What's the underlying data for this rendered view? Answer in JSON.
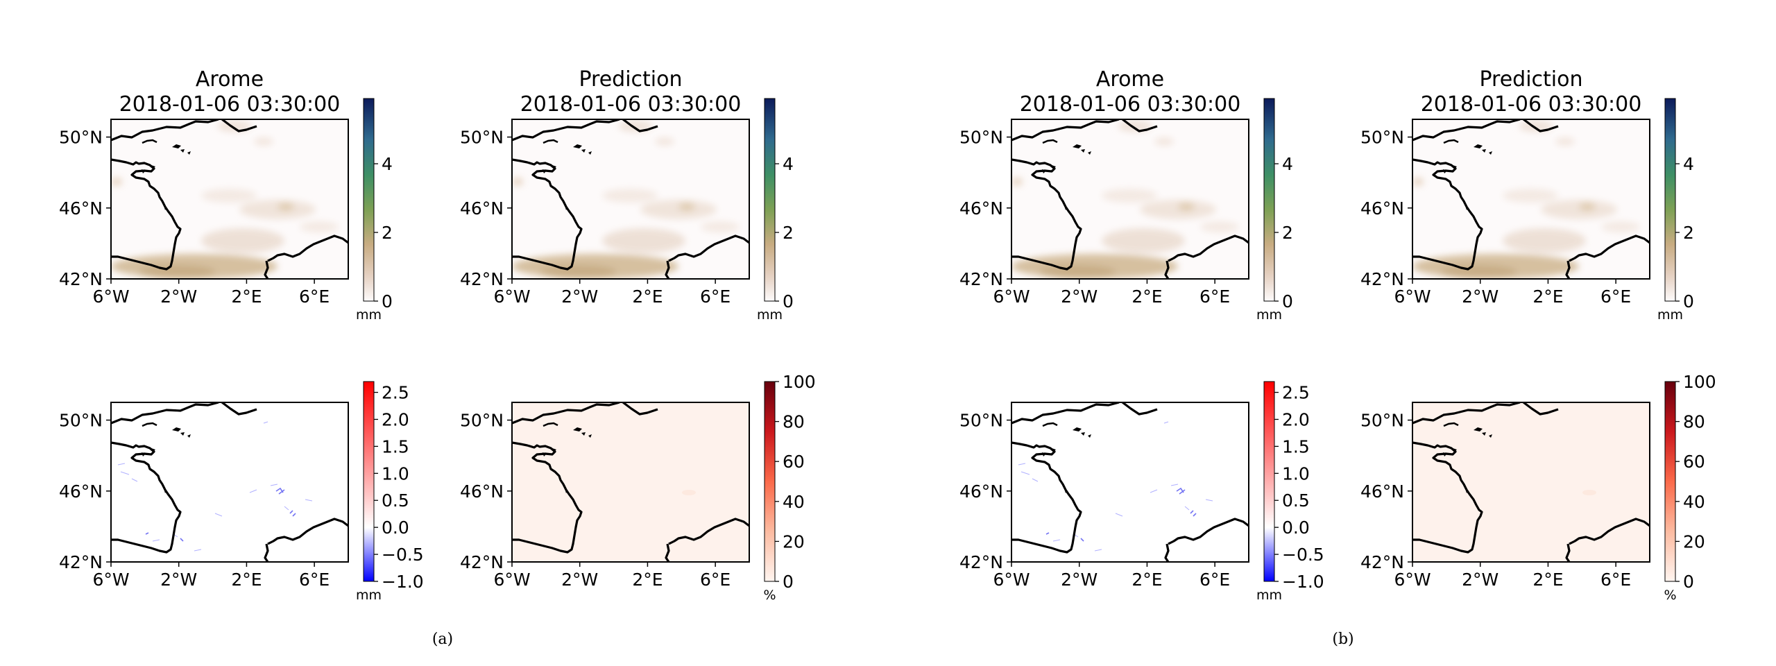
{
  "figure": {
    "sub_labels": [
      "(a)",
      "(b)"
    ]
  },
  "chart_data": [
    {
      "type": "heatmap",
      "panel": "a",
      "row": 1,
      "col": 1,
      "title": "Arome",
      "subtitle": "2018-01-06 03:30:00",
      "field": "precipitation",
      "xlim": [
        -6,
        8
      ],
      "ylim": [
        42,
        51
      ],
      "x_ticks": [
        "6°W",
        "2°W",
        "2°E",
        "6°E"
      ],
      "y_ticks": [
        "50°N",
        "46°N",
        "42°N"
      ],
      "colorbar": {
        "cmap": "gist_earth_r",
        "ticks": [
          "0",
          "2",
          "4"
        ],
        "range": [
          0,
          5.9
        ],
        "unit": "mm"
      }
    },
    {
      "type": "heatmap",
      "panel": "a",
      "row": 1,
      "col": 2,
      "title": "Prediction",
      "subtitle": "2018-01-06 03:30:00",
      "field": "precipitation",
      "xlim": [
        -6,
        8
      ],
      "ylim": [
        42,
        51
      ],
      "x_ticks": [
        "6°W",
        "2°W",
        "2°E",
        "6°E"
      ],
      "y_ticks": [
        "50°N",
        "46°N",
        "42°N"
      ],
      "colorbar": {
        "cmap": "gist_earth_r",
        "ticks": [
          "0",
          "2",
          "4"
        ],
        "range": [
          0,
          5.9
        ],
        "unit": "mm"
      }
    },
    {
      "type": "heatmap",
      "panel": "a",
      "row": 2,
      "col": 1,
      "title": "",
      "subtitle": "",
      "field": "difference",
      "xlim": [
        -6,
        8
      ],
      "ylim": [
        42,
        51
      ],
      "x_ticks": [
        "6°W",
        "2°W",
        "2°E",
        "6°E"
      ],
      "y_ticks": [
        "50°N",
        "46°N",
        "42°N"
      ],
      "colorbar": {
        "cmap": "bwr",
        "ticks": [
          "−1.0",
          "−0.5",
          "0.0",
          "0.5",
          "1.0",
          "1.5",
          "2.0",
          "2.5"
        ],
        "range": [
          -1.0,
          2.7
        ],
        "unit": "mm"
      }
    },
    {
      "type": "heatmap",
      "panel": "a",
      "row": 2,
      "col": 2,
      "title": "",
      "subtitle": "",
      "field": "probability",
      "xlim": [
        -6,
        8
      ],
      "ylim": [
        42,
        51
      ],
      "x_ticks": [
        "6°W",
        "2°W",
        "2°E",
        "6°E"
      ],
      "y_ticks": [
        "50°N",
        "46°N",
        "42°N"
      ],
      "colorbar": {
        "cmap": "Reds",
        "ticks": [
          "0",
          "20",
          "40",
          "60",
          "80",
          "100"
        ],
        "range": [
          0,
          100
        ],
        "unit": "%"
      }
    },
    {
      "type": "heatmap",
      "panel": "b",
      "row": 1,
      "col": 1,
      "title": "Arome",
      "subtitle": "2018-01-06 03:30:00",
      "field": "precipitation",
      "xlim": [
        -6,
        8
      ],
      "ylim": [
        42,
        51
      ],
      "x_ticks": [
        "6°W",
        "2°W",
        "2°E",
        "6°E"
      ],
      "y_ticks": [
        "50°N",
        "46°N",
        "42°N"
      ],
      "colorbar": {
        "cmap": "gist_earth_r",
        "ticks": [
          "0",
          "2",
          "4"
        ],
        "range": [
          0,
          5.9
        ],
        "unit": "mm"
      }
    },
    {
      "type": "heatmap",
      "panel": "b",
      "row": 1,
      "col": 2,
      "title": "Prediction",
      "subtitle": "2018-01-06 03:30:00",
      "field": "precipitation",
      "xlim": [
        -6,
        8
      ],
      "ylim": [
        42,
        51
      ],
      "x_ticks": [
        "6°W",
        "2°W",
        "2°E",
        "6°E"
      ],
      "y_ticks": [
        "50°N",
        "46°N",
        "42°N"
      ],
      "colorbar": {
        "cmap": "gist_earth_r",
        "ticks": [
          "0",
          "2",
          "4"
        ],
        "range": [
          0,
          5.9
        ],
        "unit": "mm"
      }
    },
    {
      "type": "heatmap",
      "panel": "b",
      "row": 2,
      "col": 1,
      "title": "",
      "subtitle": "",
      "field": "difference",
      "xlim": [
        -6,
        8
      ],
      "ylim": [
        42,
        51
      ],
      "x_ticks": [
        "6°W",
        "2°W",
        "2°E",
        "6°E"
      ],
      "y_ticks": [
        "50°N",
        "46°N",
        "42°N"
      ],
      "colorbar": {
        "cmap": "bwr",
        "ticks": [
          "−1.0",
          "−0.5",
          "0.0",
          "0.5",
          "1.0",
          "1.5",
          "2.0",
          "2.5"
        ],
        "range": [
          -1.0,
          2.7
        ],
        "unit": "mm"
      }
    },
    {
      "type": "heatmap",
      "panel": "b",
      "row": 2,
      "col": 2,
      "title": "",
      "subtitle": "",
      "field": "probability",
      "xlim": [
        -6,
        8
      ],
      "ylim": [
        42,
        51
      ],
      "x_ticks": [
        "6°W",
        "2°W",
        "2°E",
        "6°E"
      ],
      "y_ticks": [
        "50°N",
        "46°N",
        "42°N"
      ],
      "colorbar": {
        "cmap": "Reds",
        "ticks": [
          "0",
          "20",
          "40",
          "60",
          "80",
          "100"
        ],
        "range": [
          0,
          100
        ],
        "unit": "%"
      }
    }
  ]
}
